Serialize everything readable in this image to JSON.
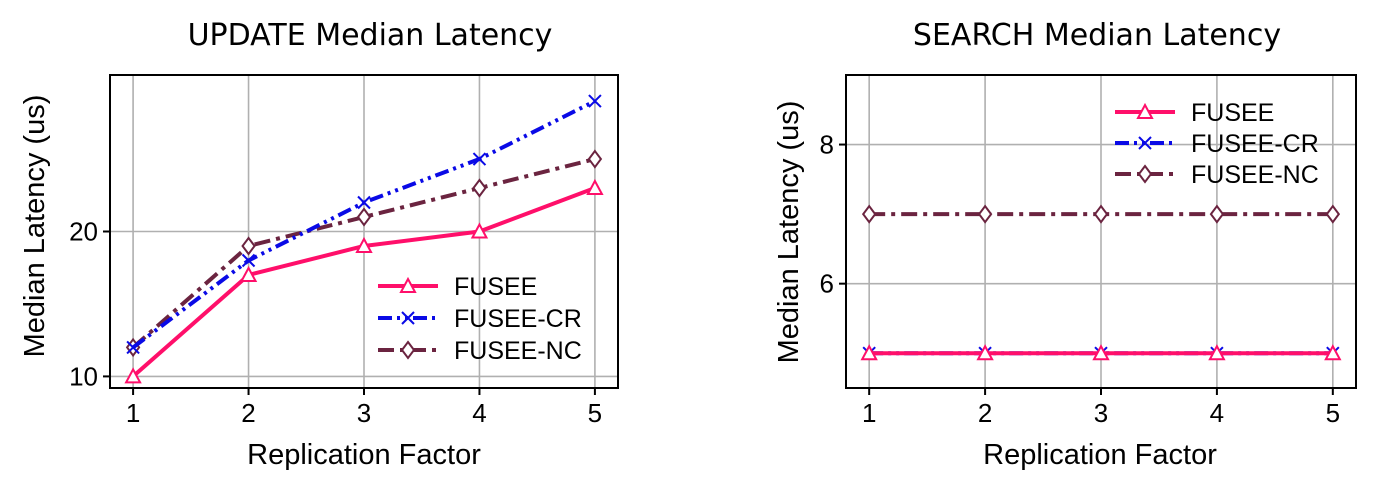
{
  "chart_data": [
    {
      "type": "line",
      "title": "UPDATE Median Latency",
      "xlabel": "Replication Factor",
      "ylabel": "Median Latency (us)",
      "x": [
        1,
        2,
        3,
        4,
        5
      ],
      "xlim": [
        0.8,
        5.2
      ],
      "ylim": [
        9.2,
        30.8
      ],
      "xticks": [
        1,
        2,
        3,
        4,
        5
      ],
      "yticks": [
        10,
        20
      ],
      "grid": true,
      "legend_position": "lower-right",
      "series": [
        {
          "name": "FUSEE",
          "values": [
            10,
            17,
            19,
            20,
            23
          ],
          "color": "#ff0f6a",
          "dash": "solid",
          "marker": "triangle"
        },
        {
          "name": "FUSEE-CR",
          "values": [
            12,
            18,
            22,
            25,
            29
          ],
          "color": "#0a0ae6",
          "dash": "dashdotdot",
          "marker": "x"
        },
        {
          "name": "FUSEE-NC",
          "values": [
            12,
            19,
            21,
            23,
            25
          ],
          "color": "#6b2440",
          "dash": "dashdot",
          "marker": "diamond"
        }
      ]
    },
    {
      "type": "line",
      "title": "SEARCH Median Latency",
      "xlabel": "Replication Factor",
      "ylabel": "Median Latency (us)",
      "x": [
        1,
        2,
        3,
        4,
        5
      ],
      "xlim": [
        0.8,
        5.2
      ],
      "ylim": [
        4.5,
        9.0
      ],
      "xticks": [
        1,
        2,
        3,
        4,
        5
      ],
      "yticks": [
        6,
        8
      ],
      "grid": true,
      "legend_position": "upper-right",
      "series": [
        {
          "name": "FUSEE",
          "values": [
            5,
            5,
            5,
            5,
            5
          ],
          "color": "#ff0f6a",
          "dash": "solid",
          "marker": "triangle"
        },
        {
          "name": "FUSEE-CR",
          "values": [
            5,
            5,
            5,
            5,
            5
          ],
          "color": "#0a0ae6",
          "dash": "dashdotdot",
          "marker": "x"
        },
        {
          "name": "FUSEE-NC",
          "values": [
            7,
            7,
            7,
            7,
            7
          ],
          "color": "#6b2440",
          "dash": "dashdot",
          "marker": "diamond"
        }
      ]
    }
  ]
}
